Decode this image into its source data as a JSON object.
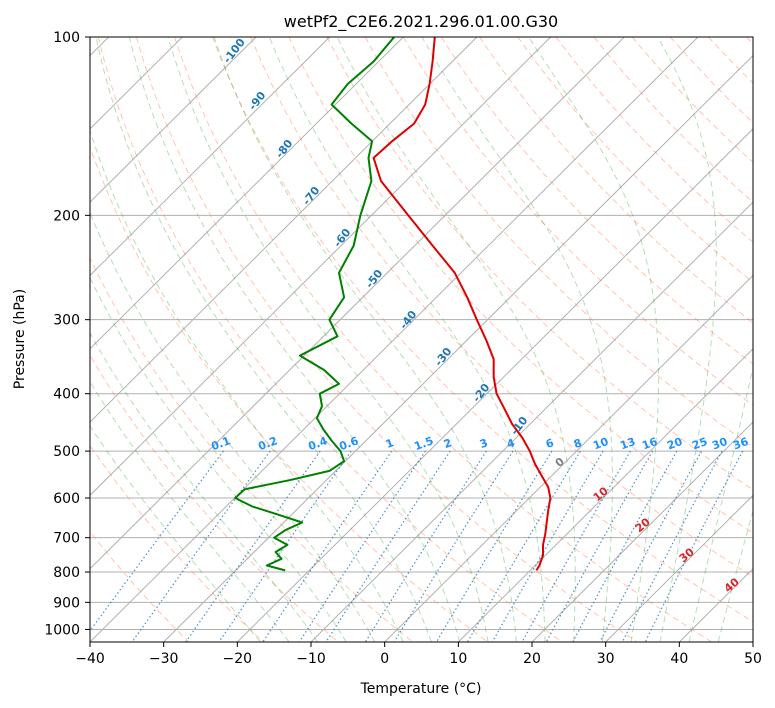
{
  "chart_data": {
    "type": "line",
    "title": "wetPf2_C2E6.2021.296.01.00.G30",
    "xlabel": "Temperature (°C)",
    "ylabel": "Pressure (hPa)",
    "xlim": [
      -40,
      50
    ],
    "ylim": [
      1050,
      100
    ],
    "y_scale": "log",
    "x_ticks": [
      -40,
      -30,
      -20,
      -10,
      0,
      10,
      20,
      30,
      40,
      50
    ],
    "y_ticks": [
      100,
      200,
      300,
      400,
      500,
      600,
      700,
      800,
      900,
      1000
    ],
    "grid": true,
    "series": [
      {
        "color": "#e00000",
        "pressure": [
          100,
          110,
          120,
          130,
          140,
          150,
          160,
          175,
          200,
          225,
          250,
          275,
          300,
          325,
          350,
          375,
          400,
          425,
          450,
          475,
          500,
          525,
          550,
          575,
          600,
          630,
          660,
          690,
          720,
          750,
          780,
          795
        ],
        "x_display": [
          6.8,
          6.5,
          6.1,
          5.5,
          4.0,
          1.0,
          -1.5,
          -0.5,
          3.2,
          6.5,
          9.5,
          11.2,
          12.5,
          13.8,
          14.8,
          14.8,
          15.2,
          16.3,
          17.3,
          18.7,
          19.7,
          20.4,
          21.3,
          22.2,
          22.5,
          22.2,
          22.0,
          21.8,
          21.5,
          21.5,
          21.0,
          20.6
        ]
      },
      {
        "color": "#008000",
        "pressure": [
          100,
          110,
          120,
          130,
          140,
          150,
          160,
          175,
          200,
          225,
          250,
          275,
          300,
          320,
          345,
          365,
          385,
          400,
          420,
          440,
          460,
          480,
          500,
          520,
          540,
          560,
          580,
          600,
          620,
          640,
          660,
          680,
          700,
          720,
          740,
          760,
          780,
          795
        ],
        "x_display": [
          1.3,
          -1.5,
          -5.0,
          -7.2,
          -4.5,
          -1.7,
          -2.2,
          -1.8,
          -3.3,
          -4.2,
          -6.2,
          -5.5,
          -7.5,
          -6.4,
          -11.5,
          -8.2,
          -6.2,
          -8.8,
          -8.5,
          -9.2,
          -8.3,
          -7.2,
          -6.0,
          -5.5,
          -7.5,
          -13.0,
          -19.0,
          -20.3,
          -18.0,
          -14.5,
          -11.2,
          -13.5,
          -15.0,
          -13.2,
          -14.8,
          -14.0,
          -16.0,
          -13.5
        ]
      }
    ],
    "isotherm_labels": [
      "-100",
      "-90",
      "-80",
      "-70",
      "-60",
      "-50",
      "-40",
      "-30",
      "-20",
      "-10"
    ],
    "moist_adiabat_labels": [
      "0",
      "10",
      "20",
      "30",
      "40"
    ],
    "mixing_ratio_labels": [
      "0.1",
      "0.2",
      "0.4",
      "0.6",
      "1",
      "1.5",
      "2",
      "3",
      "4",
      "6",
      "8",
      "10",
      "13",
      "16",
      "20",
      "25",
      "30",
      "36"
    ],
    "colors": {
      "isotherm_label": "#1f77b4",
      "moist_label": "#d62728",
      "mixing_label": "#1e90ff",
      "zero_label": "#808080",
      "grid": "#b0b0b0",
      "dry_adiabat": "#ff7f50",
      "moist_adiabat": "#2ca02c",
      "mixing_line": "#1f77b4"
    }
  }
}
